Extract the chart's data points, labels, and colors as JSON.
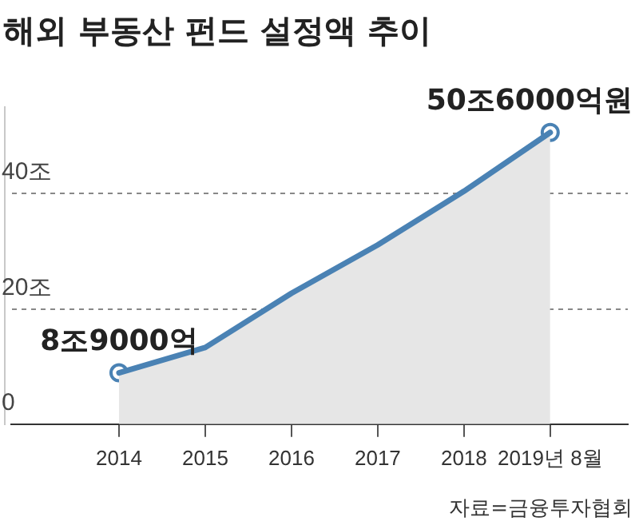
{
  "chart_data": {
    "type": "area",
    "title": "해외 부동산 펀드 설정액 추이",
    "categories": [
      "2014",
      "2015",
      "2016",
      "2017",
      "2018",
      "2019년 8월"
    ],
    "series": [
      {
        "color": "#4a82b4",
        "values": [
          8.9,
          13.3,
          22.7,
          31.1,
          40.4,
          50.6
        ]
      },
      {
        "type": "scatter",
        "color": "#4a82b4",
        "marker": "circle",
        "values": [
          8.9,
          null,
          null,
          null,
          null,
          50.6
        ],
        "value_labels": [
          "8조9000억",
          null,
          null,
          null,
          null,
          "50조6000억원"
        ]
      }
    ],
    "ylim": [
      0,
      55
    ],
    "yticks": [
      0,
      {
        "value": 20,
        "label": "20조"
      },
      {
        "value": 40,
        "label": "40조"
      }
    ],
    "grid": "y",
    "line_style": "solid",
    "legend": false,
    "annotations": [
      "자료=금융투자협회"
    ]
  }
}
